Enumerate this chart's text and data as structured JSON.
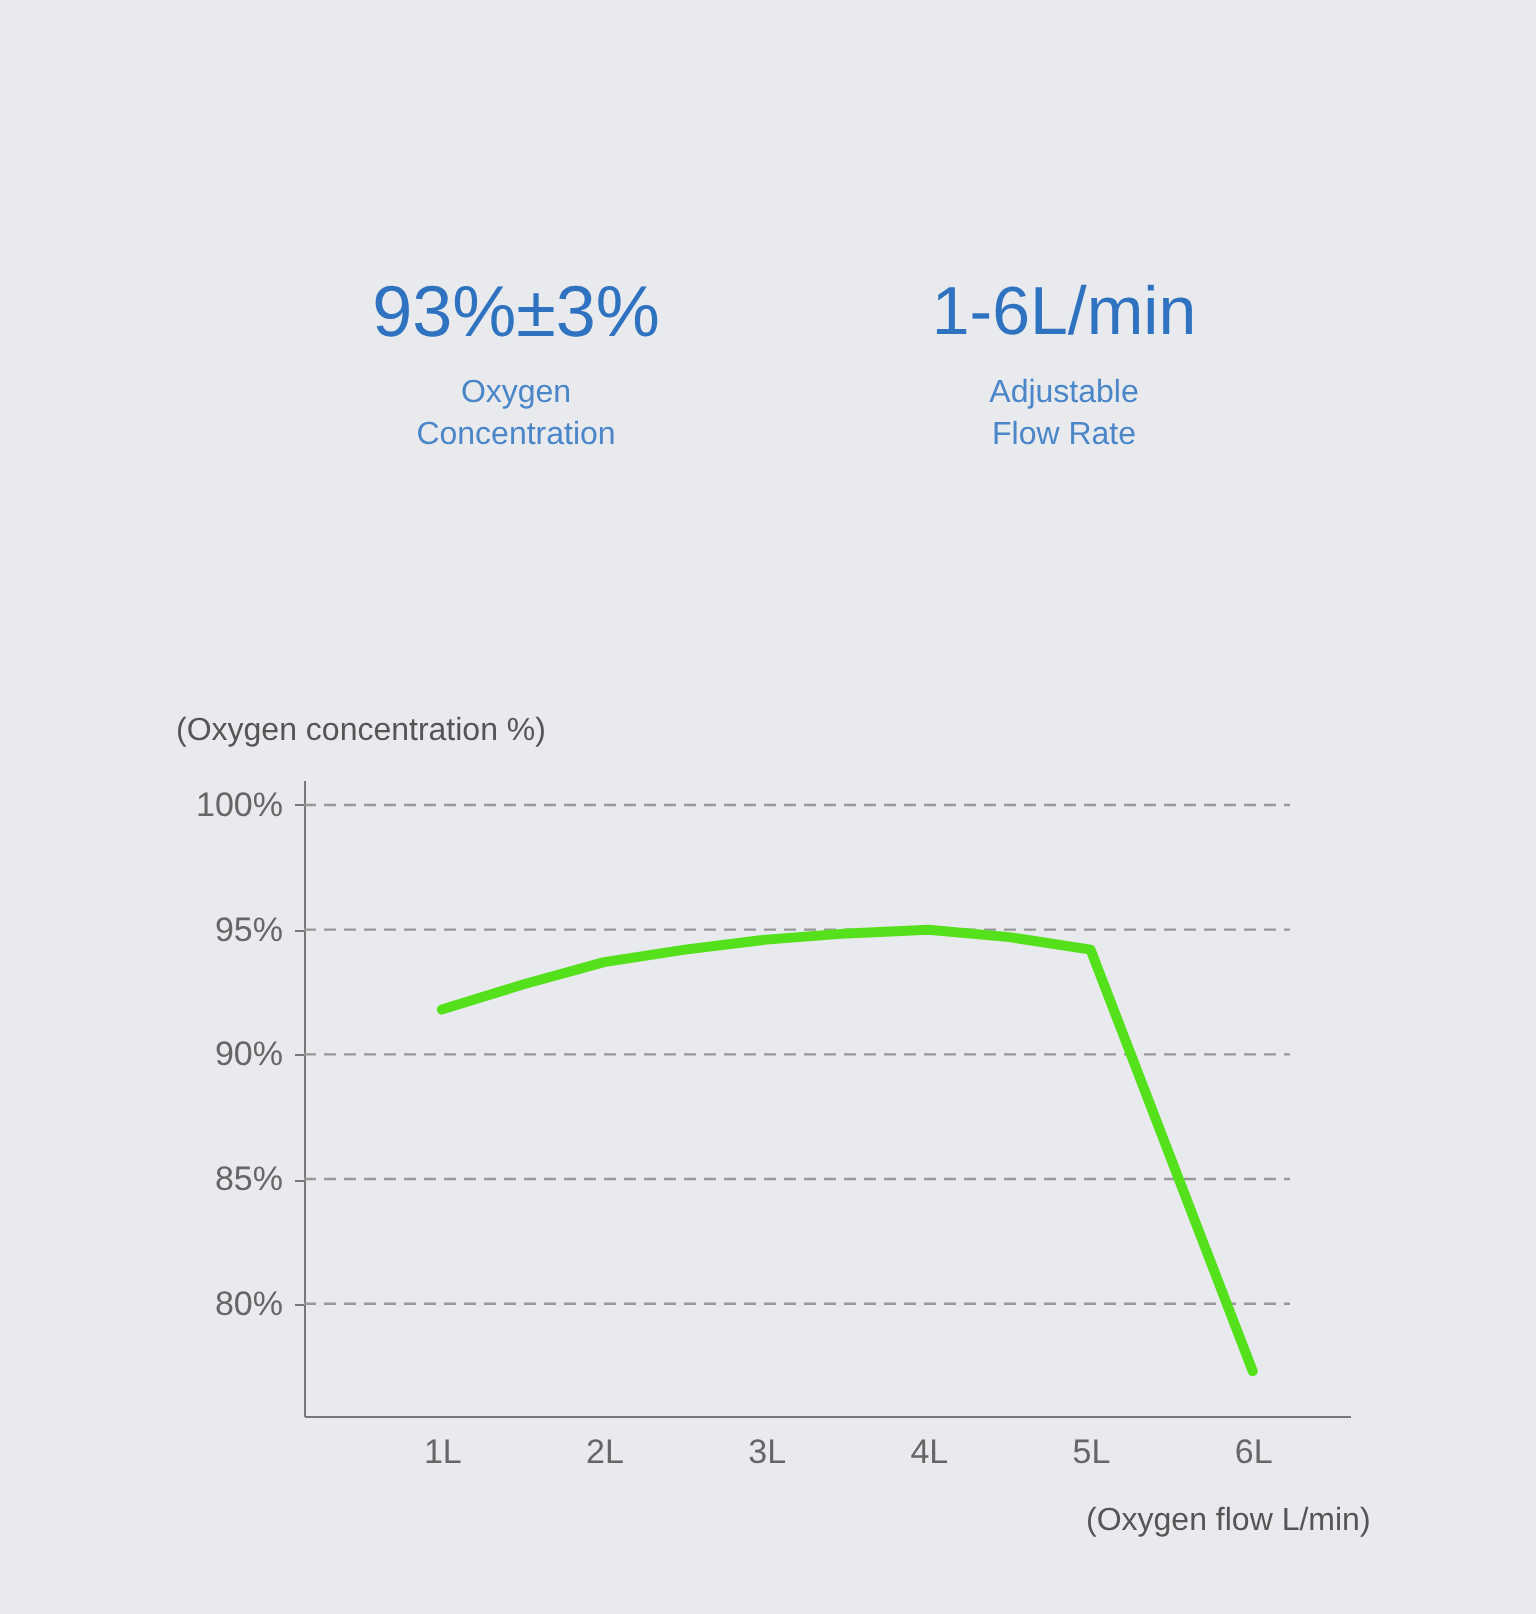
{
  "chart_data": {
    "type": "line",
    "annotations": [
      "93%±3%",
      "Oxygen\nConcentration",
      "1-6L/min",
      "Adjustable\nFlow Rate"
    ],
    "xlabel": "(Oxygen flow L/min)",
    "ylabel": "(Oxygen concentration %)",
    "series": [
      {
        "color": "#55e01c",
        "x": [
          1,
          1.5,
          2,
          2.5,
          3,
          3.5,
          4,
          4.5,
          5,
          6
        ],
        "values": [
          91.8,
          92.8,
          93.7,
          94.2,
          94.6,
          94.85,
          95.0,
          94.7,
          94.2,
          77.3
        ]
      }
    ],
    "xlim": [
      0.15,
      6.6
    ],
    "ylim": [
      75.5,
      101
    ],
    "xticks": [
      {
        "value": 1,
        "label": "1L"
      },
      {
        "value": 2,
        "label": "2L"
      },
      {
        "value": 3,
        "label": "3L"
      },
      {
        "value": 4,
        "label": "4L"
      },
      {
        "value": 5,
        "label": "5L"
      },
      {
        "value": 6,
        "label": "6L"
      }
    ],
    "yticks": [
      {
        "value": 80,
        "label": "80%"
      },
      {
        "value": 85,
        "label": "85%"
      },
      {
        "value": 90,
        "label": "90%"
      },
      {
        "value": 95,
        "label": "95%"
      },
      {
        "value": 100,
        "label": "100%"
      }
    ],
    "grid": "y",
    "line_style": "solid"
  }
}
